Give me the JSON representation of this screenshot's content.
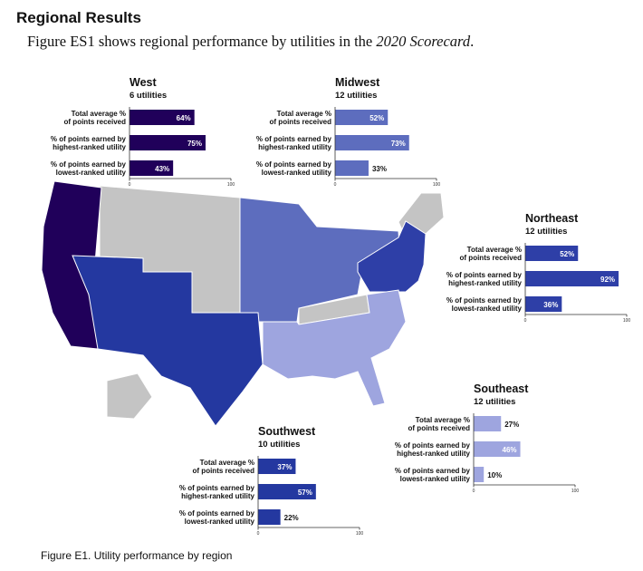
{
  "header": {
    "title": "Regional Results",
    "subtitle_pre": "Figure ES1 shows regional performance by utilities in the ",
    "subtitle_em": "2020 Scorecard",
    "subtitle_post": "."
  },
  "caption": "Figure E1. Utility performance by region",
  "colors": {
    "West": "#20005a",
    "Midwest": "#5d6dbe",
    "Northeast": "#2e3fa7",
    "Southeast": "#9ea5df",
    "Southwest": "#2438a0",
    "nodata": "#c4c4c4"
  },
  "chart_data": {
    "type": "bar",
    "orientation": "horizontal",
    "categories": [
      "Total average % of points received",
      "% of points earned by highest-ranked utility",
      "% of points earned by lowest-ranked utility"
    ],
    "xlim": [
      0,
      100
    ],
    "tick_labels": [
      "0",
      "100"
    ],
    "series": [
      {
        "name": "West",
        "subtitle": "6 utilities",
        "values": [
          64,
          75,
          43
        ],
        "value_labels": [
          "64%",
          "75%",
          "43%"
        ]
      },
      {
        "name": "Midwest",
        "subtitle": "12 utilities",
        "values": [
          52,
          73,
          33
        ],
        "value_labels": [
          "52%",
          "73%",
          "33%"
        ]
      },
      {
        "name": "Northeast",
        "subtitle": "12 utilities",
        "values": [
          52,
          92,
          36
        ],
        "value_labels": [
          "52%",
          "92%",
          "36%"
        ]
      },
      {
        "name": "Southeast",
        "subtitle": "12 utilities",
        "values": [
          27,
          46,
          10
        ],
        "value_labels": [
          "27%",
          "46%",
          "10%"
        ]
      },
      {
        "name": "Southwest",
        "subtitle": "10 utilities",
        "values": [
          37,
          57,
          22
        ],
        "value_labels": [
          "37%",
          "57%",
          "22%"
        ]
      }
    ]
  }
}
